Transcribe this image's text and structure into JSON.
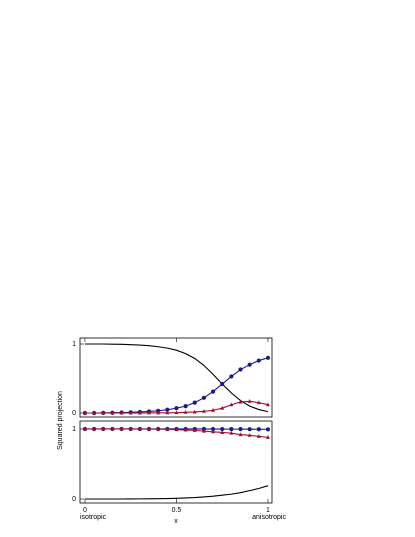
{
  "chart_data": [
    {
      "type": "line",
      "ylabel": "Squared projection",
      "x": [
        0,
        0.05,
        0.1,
        0.15,
        0.2,
        0.25,
        0.3,
        0.35,
        0.4,
        0.45,
        0.5,
        0.55,
        0.6,
        0.65,
        0.7,
        0.75,
        0.8,
        0.85,
        0.9,
        0.95,
        1
      ],
      "xlim": [
        -0.027,
        1.022
      ],
      "ylim": [
        -0.058,
        1.087
      ],
      "yticks": [
        0,
        1
      ],
      "series": [
        {
          "color": "#000000",
          "marker": "none",
          "values": [
            1,
            1,
            1,
            0.998,
            0.995,
            0.99,
            0.985,
            0.975,
            0.96,
            0.94,
            0.91,
            0.86,
            0.79,
            0.69,
            0.56,
            0.42,
            0.29,
            0.18,
            0.1,
            0.05,
            0.02
          ]
        },
        {
          "color": "#1a1a8c",
          "marker": "circle",
          "values": [
            0,
            0,
            0.002,
            0.004,
            0.007,
            0.01,
            0.015,
            0.022,
            0.032,
            0.047,
            0.07,
            0.1,
            0.15,
            0.22,
            0.31,
            0.42,
            0.53,
            0.63,
            0.7,
            0.76,
            0.8
          ]
        },
        {
          "color": "#a01030",
          "marker": "triangle",
          "values": [
            0,
            0,
            0,
            0,
            0,
            0,
            0,
            0.001,
            0.002,
            0.003,
            0.005,
            0.01,
            0.015,
            0.025,
            0.04,
            0.07,
            0.12,
            0.16,
            0.17,
            0.15,
            0.12
          ]
        }
      ]
    },
    {
      "type": "line",
      "xlabel": "x",
      "annotations": [
        "isotropic",
        "anisotropic"
      ],
      "x": [
        0,
        0.05,
        0.1,
        0.15,
        0.2,
        0.25,
        0.3,
        0.35,
        0.4,
        0.45,
        0.5,
        0.55,
        0.6,
        0.65,
        0.7,
        0.75,
        0.8,
        0.85,
        0.9,
        0.95,
        1
      ],
      "xlim": [
        -0.027,
        1.022
      ],
      "ylim": [
        -0.057,
        1.114
      ],
      "yticks": [
        0,
        1
      ],
      "xticks": [
        0,
        0.5,
        1
      ],
      "series": [
        {
          "color": "#000000",
          "marker": "none",
          "values": [
            0,
            0,
            0,
            0,
            0,
            0.001,
            0.002,
            0.003,
            0.005,
            0.007,
            0.01,
            0.015,
            0.02,
            0.03,
            0.04,
            0.055,
            0.07,
            0.09,
            0.12,
            0.15,
            0.19
          ]
        },
        {
          "color": "#1a1a8c",
          "marker": "circle",
          "values": [
            1,
            1,
            1,
            1,
            1,
            1,
            1,
            1,
            1,
            1,
            1,
            1,
            1,
            1,
            0.999,
            0.999,
            0.998,
            0.998,
            0.997,
            0.996,
            0.995
          ]
        },
        {
          "color": "#a01030",
          "marker": "triangle",
          "values": [
            1,
            1,
            1,
            1,
            1,
            1,
            0.999,
            0.998,
            0.997,
            0.995,
            0.99,
            0.985,
            0.98,
            0.97,
            0.96,
            0.95,
            0.94,
            0.92,
            0.91,
            0.895,
            0.88
          ]
        }
      ]
    }
  ]
}
